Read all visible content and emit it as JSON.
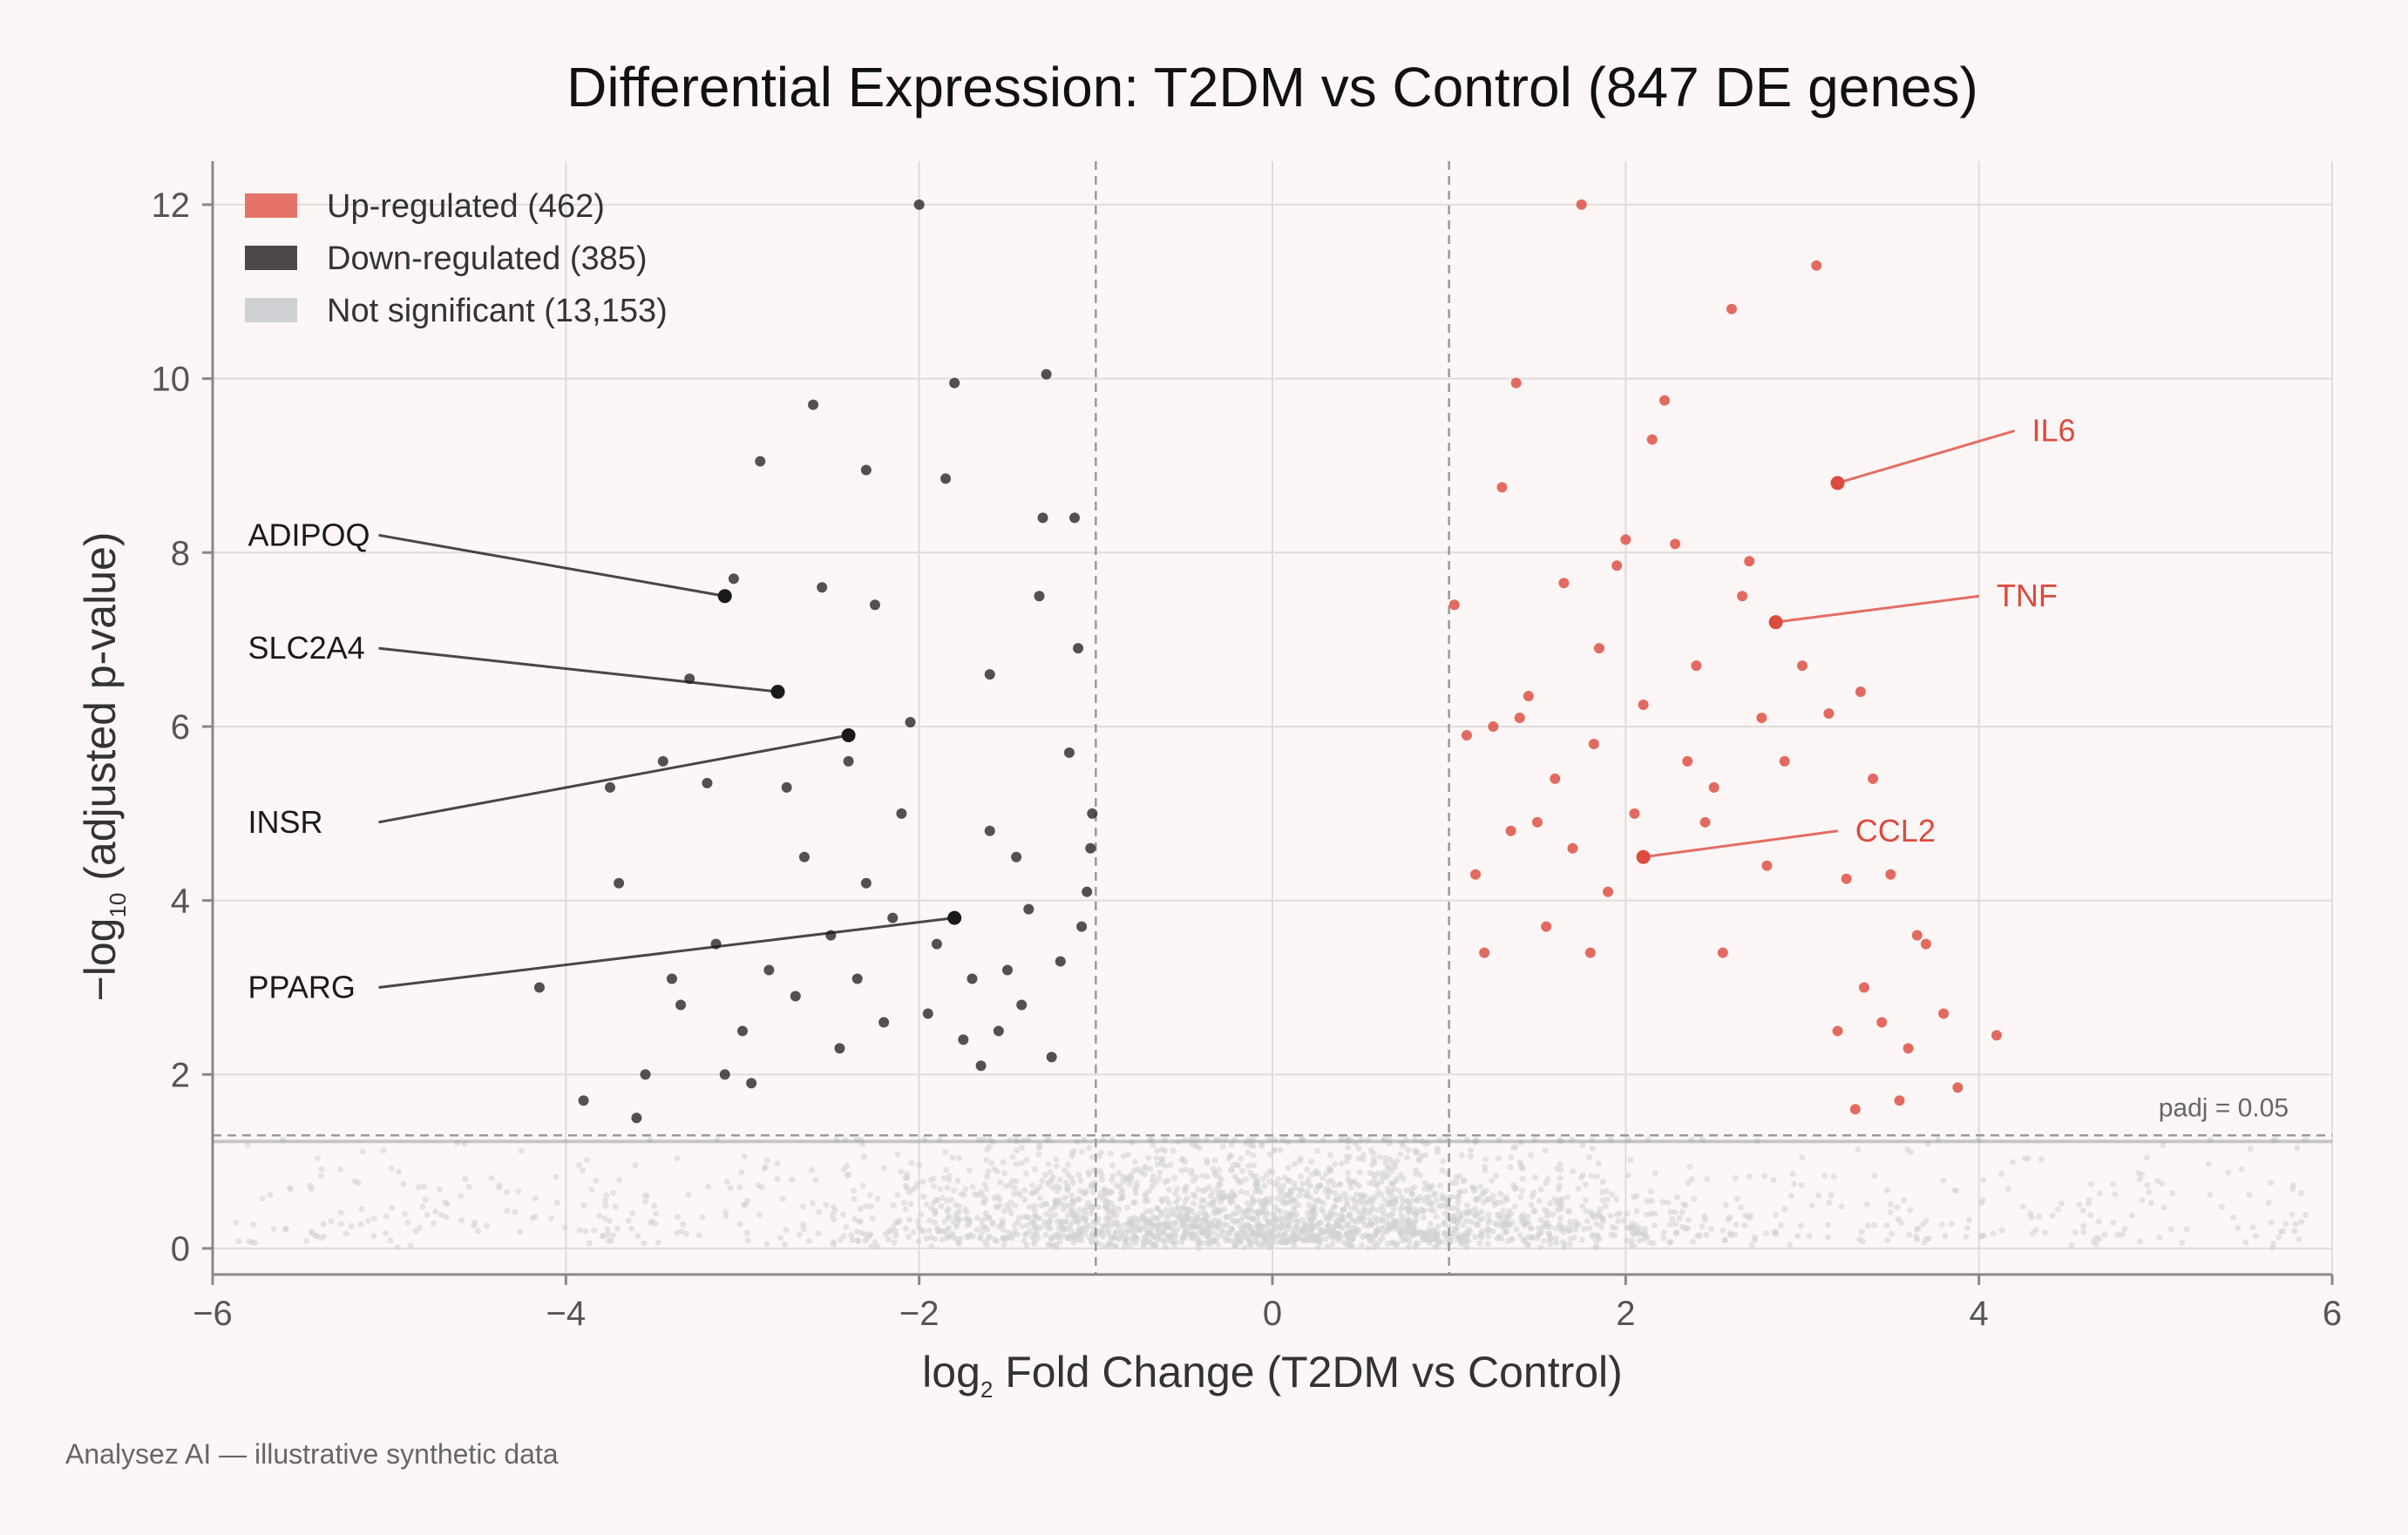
{
  "chart_data": {
    "type": "scatter",
    "title": "Differential Expression: T2DM vs Control (847 DE genes)",
    "xlabel": {
      "prefix": "log",
      "sub": "2",
      "suffix": " Fold Change (T2DM vs Control)"
    },
    "ylabel": {
      "prefix": "−log",
      "sub": "10",
      "suffix": " (adjusted p-value)"
    },
    "xlim": [
      -6,
      6
    ],
    "ylim": [
      -0.3,
      12.5
    ],
    "xticks": [
      -6,
      -4,
      -2,
      0,
      2,
      4,
      6
    ],
    "xtick_labels": [
      "−6",
      "−4",
      "−2",
      "0",
      "2",
      "4",
      "6"
    ],
    "yticks": [
      0,
      2,
      4,
      6,
      8,
      10,
      12
    ],
    "ytick_labels": [
      "0",
      "2",
      "4",
      "6",
      "8",
      "10",
      "12"
    ],
    "grid": true,
    "legend_position": "top-left",
    "legend": [
      {
        "label": "Up-regulated (462)",
        "color": "#e5736a"
      },
      {
        "label": "Down-regulated (385)",
        "color": "#4d4848"
      },
      {
        "label": "Not significant (13,153)",
        "color": "#cfd1d4"
      }
    ],
    "thresholds": {
      "log2fc": [
        -1,
        1
      ],
      "neglog10_padj": 1.3,
      "label": "padj = 0.05"
    },
    "series": [
      {
        "key": "up",
        "color": "#dd4a3e",
        "points": [
          [
            1.03,
            7.4
          ],
          [
            1.1,
            5.9
          ],
          [
            1.15,
            4.3
          ],
          [
            1.2,
            3.4
          ],
          [
            1.25,
            6.0
          ],
          [
            1.3,
            8.75
          ],
          [
            1.35,
            4.8
          ],
          [
            1.38,
            9.95
          ],
          [
            1.4,
            6.1
          ],
          [
            1.45,
            6.35
          ],
          [
            1.5,
            4.9
          ],
          [
            1.55,
            3.7
          ],
          [
            1.6,
            5.4
          ],
          [
            1.65,
            7.65
          ],
          [
            1.7,
            4.6
          ],
          [
            1.75,
            12.0
          ],
          [
            1.8,
            3.4
          ],
          [
            1.82,
            5.8
          ],
          [
            1.85,
            6.9
          ],
          [
            1.9,
            4.1
          ],
          [
            1.95,
            7.85
          ],
          [
            2.0,
            8.15
          ],
          [
            2.05,
            5.0
          ],
          [
            2.1,
            6.25
          ],
          [
            2.15,
            9.3
          ],
          [
            2.22,
            9.75
          ],
          [
            2.28,
            8.1
          ],
          [
            2.35,
            5.6
          ],
          [
            2.4,
            6.7
          ],
          [
            2.45,
            4.9
          ],
          [
            2.5,
            5.3
          ],
          [
            2.55,
            3.4
          ],
          [
            2.6,
            10.8
          ],
          [
            2.66,
            7.5
          ],
          [
            2.7,
            7.9
          ],
          [
            2.77,
            6.1
          ],
          [
            2.8,
            4.4
          ],
          [
            2.9,
            5.6
          ],
          [
            3.0,
            6.7
          ],
          [
            3.08,
            11.3
          ],
          [
            3.15,
            6.15
          ],
          [
            3.25,
            4.25
          ],
          [
            3.33,
            6.4
          ],
          [
            3.4,
            5.4
          ],
          [
            3.5,
            4.3
          ],
          [
            3.65,
            3.6
          ],
          [
            3.8,
            2.7
          ],
          [
            3.88,
            1.85
          ],
          [
            4.1,
            2.45
          ],
          [
            3.6,
            2.3
          ],
          [
            3.7,
            3.5
          ],
          [
            3.55,
            1.7
          ],
          [
            3.45,
            2.6
          ],
          [
            3.3,
            1.6
          ],
          [
            3.2,
            2.5
          ],
          [
            3.35,
            3.0
          ]
        ]
      },
      {
        "key": "down",
        "color": "#2f2a2a",
        "points": [
          [
            -1.02,
            5.0
          ],
          [
            -1.03,
            4.6
          ],
          [
            -1.05,
            4.1
          ],
          [
            -1.08,
            3.7
          ],
          [
            -1.1,
            6.9
          ],
          [
            -1.12,
            8.4
          ],
          [
            -1.15,
            5.7
          ],
          [
            -1.2,
            3.3
          ],
          [
            -1.25,
            2.2
          ],
          [
            -1.28,
            10.05
          ],
          [
            -1.32,
            7.5
          ],
          [
            -1.38,
            3.9
          ],
          [
            -1.42,
            2.8
          ],
          [
            -1.45,
            4.5
          ],
          [
            -1.5,
            3.2
          ],
          [
            -1.55,
            2.5
          ],
          [
            -1.6,
            4.8
          ],
          [
            -1.65,
            2.1
          ],
          [
            -1.7,
            3.1
          ],
          [
            -1.75,
            2.4
          ],
          [
            -1.8,
            9.95
          ],
          [
            -1.85,
            8.85
          ],
          [
            -1.9,
            3.5
          ],
          [
            -1.95,
            2.7
          ],
          [
            -2.0,
            12.0
          ],
          [
            -2.05,
            6.05
          ],
          [
            -2.1,
            5.0
          ],
          [
            -2.15,
            3.8
          ],
          [
            -2.2,
            2.6
          ],
          [
            -2.25,
            7.4
          ],
          [
            -2.3,
            4.2
          ],
          [
            -2.35,
            3.1
          ],
          [
            -2.4,
            5.6
          ],
          [
            -2.45,
            2.3
          ],
          [
            -2.5,
            3.6
          ],
          [
            -2.55,
            7.6
          ],
          [
            -2.6,
            9.7
          ],
          [
            -2.65,
            4.5
          ],
          [
            -2.7,
            2.9
          ],
          [
            -2.75,
            5.3
          ],
          [
            -2.85,
            3.2
          ],
          [
            -2.9,
            9.05
          ],
          [
            -3.0,
            2.5
          ],
          [
            -3.05,
            7.7
          ],
          [
            -3.15,
            3.5
          ],
          [
            -3.2,
            5.35
          ],
          [
            -3.3,
            6.55
          ],
          [
            -3.4,
            3.1
          ],
          [
            -3.45,
            5.6
          ],
          [
            -3.55,
            2.0
          ],
          [
            -3.7,
            4.2
          ],
          [
            -3.75,
            5.3
          ],
          [
            -3.9,
            1.7
          ],
          [
            -4.15,
            3.0
          ],
          [
            -3.6,
            1.5
          ],
          [
            -3.35,
            2.8
          ],
          [
            -3.1,
            2.0
          ],
          [
            -2.95,
            1.9
          ],
          [
            -1.6,
            6.6
          ],
          [
            -2.3,
            8.95
          ],
          [
            -1.3,
            8.4
          ]
        ]
      }
    ],
    "annotations": [
      {
        "label": "ADIPOQ",
        "x": -3.1,
        "y": 7.5,
        "tx": -5.8,
        "ty": 8.2,
        "color": "#1a1a1a"
      },
      {
        "label": "SLC2A4",
        "x": -2.8,
        "y": 6.4,
        "tx": -5.8,
        "ty": 6.9,
        "color": "#1a1a1a"
      },
      {
        "label": "INSR",
        "x": -2.4,
        "y": 5.9,
        "tx": -5.8,
        "ty": 4.9,
        "color": "#1a1a1a"
      },
      {
        "label": "PPARG",
        "x": -1.8,
        "y": 3.8,
        "tx": -5.8,
        "ty": 3.0,
        "color": "#1a1a1a"
      },
      {
        "label": "IL6",
        "x": 3.2,
        "y": 8.8,
        "tx": 4.3,
        "ty": 9.4,
        "color": "#dd4a3e"
      },
      {
        "label": "TNF",
        "x": 2.85,
        "y": 7.2,
        "tx": 4.1,
        "ty": 7.5,
        "color": "#dd4a3e"
      },
      {
        "label": "CCL2",
        "x": 2.1,
        "y": 4.5,
        "tx": 3.3,
        "ty": 4.8,
        "color": "#dd4a3e"
      }
    ]
  },
  "footer": "Analysez AI — illustrative synthetic data"
}
